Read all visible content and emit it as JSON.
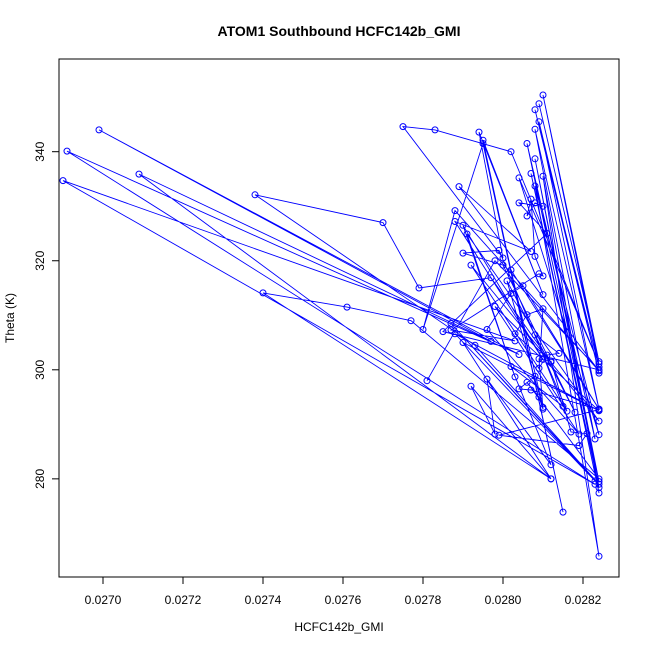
{
  "chart_data": {
    "type": "scatter",
    "title": "ATOM1 Southbound HCFC142b_GMI",
    "xlabel": "HCFC142b_GMI",
    "ylabel": "Theta (K)",
    "xlim": [
      0.02689,
      0.02829
    ],
    "ylim": [
      262,
      357
    ],
    "x_ticks": [
      0.027,
      0.0272,
      0.0274,
      0.0276,
      0.0278,
      0.028,
      0.0282
    ],
    "x_tick_labels": [
      "0.0270",
      "0.0272",
      "0.0274",
      "0.0276",
      "0.0278",
      "0.0280",
      "0.0282"
    ],
    "y_ticks": [
      280,
      300,
      320,
      340
    ],
    "y_tick_labels": [
      "280",
      "300",
      "320",
      "340"
    ],
    "series_color": "#0000ff",
    "style": "line-with-open-circles",
    "points": [
      [
        0.02809,
        348.8
      ],
      [
        0.02824,
        301.5
      ],
      [
        0.0281,
        350.4
      ],
      [
        0.02824,
        300.5
      ],
      [
        0.02808,
        347.7
      ],
      [
        0.02824,
        299.4
      ],
      [
        0.02809,
        345.5
      ],
      [
        0.02824,
        292.8
      ],
      [
        0.02808,
        344.1
      ],
      [
        0.02823,
        287.3
      ],
      [
        0.02806,
        341.5
      ],
      [
        0.02824,
        279.5
      ],
      [
        0.02808,
        338.7
      ],
      [
        0.02824,
        278.4
      ],
      [
        0.02807,
        336.0
      ],
      [
        0.02824,
        277.4
      ],
      [
        0.0281,
        335.5
      ],
      [
        0.02824,
        265.8
      ],
      [
        0.02808,
        333.7
      ],
      [
        0.02824,
        288.1
      ],
      [
        0.02804,
        335.2
      ],
      [
        0.02824,
        301.1
      ],
      [
        0.02802,
        340.0
      ],
      [
        0.02783,
        344.0
      ],
      [
        0.02775,
        344.6
      ],
      [
        0.028,
        320.5
      ],
      [
        0.02794,
        343.6
      ],
      [
        0.0281,
        313.8
      ],
      [
        0.02795,
        342.1
      ],
      [
        0.02815,
        273.9
      ],
      [
        0.02795,
        341.5
      ],
      [
        0.0278,
        307.4
      ],
      [
        0.02788,
        329.2
      ],
      [
        0.02824,
        299.8
      ],
      [
        0.02789,
        333.6
      ],
      [
        0.02807,
        321.7
      ],
      [
        0.02788,
        327.2
      ],
      [
        0.0281,
        301.9
      ],
      [
        0.0279,
        326.5
      ],
      [
        0.02803,
        298.7
      ],
      [
        0.02791,
        324.9
      ],
      [
        0.02824,
        290.6
      ],
      [
        0.02792,
        319.2
      ],
      [
        0.02816,
        292.4
      ],
      [
        0.02799,
        321.9
      ],
      [
        0.0279,
        321.4
      ],
      [
        0.028,
        319.2
      ],
      [
        0.02818,
        292.2
      ],
      [
        0.02801,
        316.3
      ],
      [
        0.0281,
        293.1
      ],
      [
        0.02802,
        318.3
      ],
      [
        0.02824,
        292.8
      ],
      [
        0.02805,
        315.4
      ],
      [
        0.02802,
        314.0
      ],
      [
        0.02796,
        307.4
      ],
      [
        0.02819,
        288.2
      ],
      [
        0.02798,
        311.6
      ],
      [
        0.02812,
        301.4
      ],
      [
        0.02797,
        316.9
      ],
      [
        0.02779,
        315.0
      ],
      [
        0.0277,
        327.0
      ],
      [
        0.02738,
        332.1
      ],
      [
        0.02793,
        304.5
      ],
      [
        0.02824,
        279.0
      ],
      [
        0.02787,
        308.5
      ],
      [
        0.02823,
        279.6
      ],
      [
        0.02788,
        306.6
      ],
      [
        0.02824,
        292.5
      ],
      [
        0.0279,
        305.0
      ],
      [
        0.02812,
        280.0
      ],
      [
        0.02792,
        297.0
      ],
      [
        0.02798,
        288.2
      ],
      [
        0.02796,
        298.3
      ],
      [
        0.02812,
        282.6
      ],
      [
        0.02802,
        300.6
      ],
      [
        0.02815,
        293.3
      ],
      [
        0.02808,
        306.4
      ],
      [
        0.02814,
        303.0
      ],
      [
        0.02811,
        302.7
      ],
      [
        0.02809,
        300.3
      ],
      [
        0.0281,
        311.2
      ],
      [
        0.02806,
        310.1
      ],
      [
        0.02803,
        306.6
      ],
      [
        0.02824,
        292.5
      ],
      [
        0.02808,
        298.8
      ],
      [
        0.02804,
        296.5
      ],
      [
        0.02807,
        296.3
      ],
      [
        0.02824,
        292.7
      ],
      [
        0.02799,
        288.0
      ],
      [
        0.02819,
        286.1
      ],
      [
        0.02821,
        288.3
      ],
      [
        0.02817,
        288.6
      ],
      [
        0.02812,
        301.6
      ],
      [
        0.02809,
        302.0
      ],
      [
        0.0281,
        292.8
      ],
      [
        0.02809,
        295.0
      ],
      [
        0.02806,
        297.7
      ],
      [
        0.02824,
        280.0
      ],
      [
        0.02777,
        309.0
      ],
      [
        0.02761,
        311.5
      ],
      [
        0.0274,
        314.1
      ],
      [
        0.02812,
        280.0
      ],
      [
        0.02709,
        335.9
      ],
      [
        0.02797,
        305.2
      ],
      [
        0.02699,
        344.0
      ],
      [
        0.02804,
        302.8
      ],
      [
        0.02691,
        340.1
      ],
      [
        0.02823,
        279.0
      ],
      [
        0.0269,
        334.7
      ],
      [
        0.02803,
        305.3
      ],
      [
        0.02787,
        307.3
      ],
      [
        0.02809,
        317.6
      ],
      [
        0.0281,
        317.2
      ],
      [
        0.02808,
        320.8
      ],
      [
        0.02807,
        331.3
      ],
      [
        0.02806,
        328.2
      ],
      [
        0.02808,
        330.6
      ],
      [
        0.0281,
        330.0
      ],
      [
        0.02804,
        330.6
      ],
      [
        0.02811,
        325.0
      ],
      [
        0.02785,
        307.0
      ],
      [
        0.02824,
        300.0
      ],
      [
        0.02798,
        320.0
      ],
      [
        0.02781,
        298.0
      ]
    ]
  }
}
